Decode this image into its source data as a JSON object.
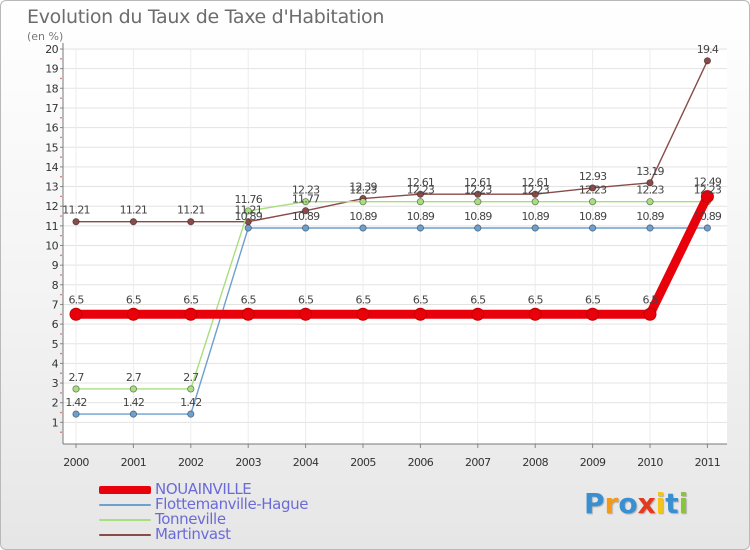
{
  "chart_data": {
    "type": "line",
    "title": "Evolution du Taux de Taxe d'Habitation",
    "unit_label": "(en %)",
    "xlabel": "",
    "ylabel": "",
    "ylim": [
      0,
      20
    ],
    "y_ticks": [
      "1",
      "2",
      "3",
      "4",
      "5",
      "6",
      "7",
      "8",
      "9",
      "10",
      "11",
      "12",
      "13",
      "14",
      "15",
      "16",
      "17",
      "18",
      "19",
      "20"
    ],
    "categories": [
      "2000",
      "2001",
      "2002",
      "2003",
      "2004",
      "2005",
      "2006",
      "2007",
      "2008",
      "2009",
      "2010",
      "2011"
    ],
    "series": [
      {
        "name": "NOUAINVILLE",
        "color": "#e8000b",
        "values": [
          6.5,
          6.5,
          6.5,
          6.5,
          6.5,
          6.5,
          6.5,
          6.5,
          6.5,
          6.5,
          6.5,
          12.49
        ],
        "labels": [
          "6.5",
          "6.5",
          "6.5",
          "6.5",
          "6.5",
          "6.5",
          "6.5",
          "6.5",
          "6.5",
          "6.5",
          "6.5",
          "12.49"
        ]
      },
      {
        "name": "Flottemanville-Hague",
        "color": "#6d9fcf",
        "values": [
          1.42,
          1.42,
          1.42,
          10.89,
          10.89,
          10.89,
          10.89,
          10.89,
          10.89,
          10.89,
          10.89,
          10.89
        ],
        "labels": [
          "1.42",
          "1.42",
          "1.42",
          "10.89",
          "10.89",
          "10.89",
          "10.89",
          "10.89",
          "10.89",
          "10.89",
          "10.89",
          "10.89"
        ]
      },
      {
        "name": "Tonneville",
        "color": "#a8df7e",
        "values": [
          2.7,
          2.7,
          2.7,
          11.76,
          12.23,
          12.23,
          12.23,
          12.23,
          12.23,
          12.23,
          12.23,
          12.23
        ],
        "labels": [
          "2.7",
          "2.7",
          "2.7",
          "11.76",
          "12.23",
          "12.23",
          "12.23",
          "12.23",
          "12.23",
          "12.23",
          "12.23",
          "12.23"
        ]
      },
      {
        "name": "Martinvast",
        "color": "#8a4a4a",
        "values": [
          11.21,
          11.21,
          11.21,
          11.21,
          11.77,
          12.39,
          12.61,
          12.61,
          12.61,
          12.93,
          13.19,
          19.4
        ],
        "labels": [
          "11.21",
          "11.21",
          "11.21",
          "11.21",
          "11.77",
          "12.39",
          "12.61",
          "12.61",
          "12.61",
          "12.93",
          "13.19",
          "19.4"
        ]
      }
    ],
    "legend_position": "bottom-left",
    "grid": true
  },
  "brand": {
    "name": "Proxiti",
    "letters": [
      "P",
      "r",
      "o",
      "x",
      "i",
      "t",
      "i"
    ],
    "colors": [
      "#3a8fd0",
      "#f39a1a",
      "#3a8fd0",
      "#e33a1f",
      "#f3c51a",
      "#3a8fd0",
      "#8ac43a"
    ]
  }
}
